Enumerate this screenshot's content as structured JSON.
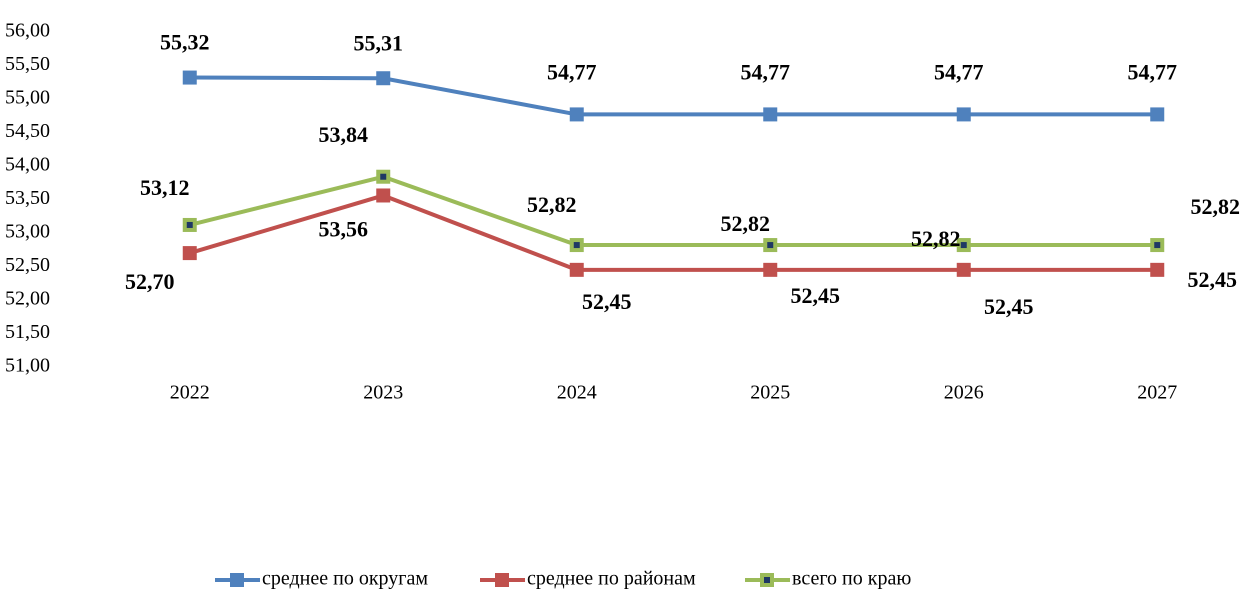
{
  "chart_data": {
    "type": "line",
    "categories": [
      "2022",
      "2023",
      "2024",
      "2025",
      "2026",
      "2027"
    ],
    "series": [
      {
        "name": "среднее по округам",
        "color": "#4f81bd",
        "values": [
          55.32,
          55.31,
          54.77,
          54.77,
          54.77,
          54.77
        ],
        "value_labels": [
          "55,32",
          "55,31",
          "54,77",
          "54,77",
          "54,77",
          "54,77"
        ]
      },
      {
        "name": "среднее по районам",
        "color": "#c0504d",
        "values": [
          52.7,
          53.56,
          52.45,
          52.45,
          52.45,
          52.45
        ],
        "value_labels": [
          "52,70",
          "53,56",
          "52,45",
          "52,45",
          "52,45",
          "52,45"
        ]
      },
      {
        "name": "всего по краю",
        "color": "#9bbb59",
        "marker_center": "#1f3864",
        "values": [
          53.12,
          53.84,
          52.82,
          52.82,
          52.82,
          52.82
        ],
        "value_labels": [
          "53,12",
          "53,84",
          "52,82",
          "52,82",
          "52,82",
          "52,82"
        ]
      }
    ],
    "ylim": [
      51,
      56
    ],
    "yticks": [
      {
        "value": 51,
        "label": "51,00"
      },
      {
        "value": 51.5,
        "label": "51,50"
      },
      {
        "value": 52,
        "label": "52,00"
      },
      {
        "value": 52.5,
        "label": "52,50"
      },
      {
        "value": 53,
        "label": "53,00"
      },
      {
        "value": 53.5,
        "label": "53,50"
      },
      {
        "value": 54,
        "label": "54,00"
      },
      {
        "value": 54.5,
        "label": "54,50"
      },
      {
        "value": 55,
        "label": "55,00"
      },
      {
        "value": 55.5,
        "label": "55,50"
      },
      {
        "value": 56,
        "label": "56,00"
      }
    ],
    "grid": false
  }
}
